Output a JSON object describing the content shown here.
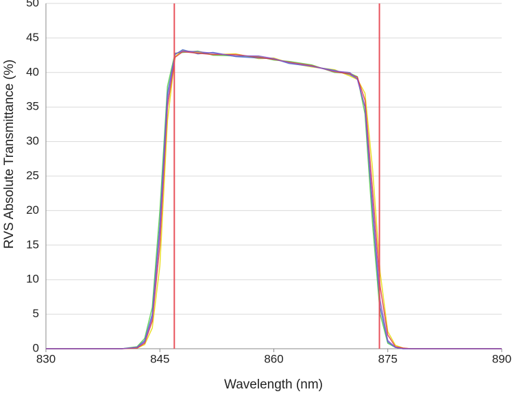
{
  "chart_data": {
    "type": "line",
    "x_label": "Wavelength (nm)",
    "y_label": "RVS Absolute Transmittance (%)",
    "x": [
      830,
      838,
      840,
      842,
      843,
      844,
      845,
      846,
      847,
      848,
      850,
      852,
      855,
      858,
      860,
      862,
      865,
      868,
      870,
      871,
      872,
      873,
      874,
      875,
      876,
      877,
      878,
      880,
      885,
      890
    ],
    "series": [
      {
        "color": "#e6d800",
        "values": [
          0,
          0,
          0,
          0.1,
          0.6,
          3,
          12,
          33,
          42.3,
          43.2,
          42.9,
          42.6,
          42.7,
          42.0,
          42.1,
          41.4,
          40.8,
          40.4,
          39.5,
          39.0,
          37,
          26,
          11,
          2.5,
          0.5,
          0.1,
          0,
          0,
          0,
          0
        ]
      },
      {
        "color": "#55cc44",
        "values": [
          0,
          0,
          0,
          0.3,
          1.5,
          6,
          20,
          38,
          42.8,
          42.9,
          43.1,
          42.5,
          42.4,
          42.3,
          41.8,
          41.6,
          41.1,
          40.0,
          39.9,
          39.4,
          34,
          18,
          5,
          0.8,
          0.2,
          0,
          0,
          0,
          0,
          0
        ]
      },
      {
        "color": "#4466cc",
        "values": [
          0,
          0,
          0,
          0.2,
          1.2,
          5,
          18,
          37,
          42.6,
          43.3,
          42.7,
          42.9,
          42.3,
          42.1,
          42.0,
          41.3,
          40.9,
          40.3,
          39.7,
          39.1,
          35,
          20,
          6,
          1,
          0.2,
          0,
          0,
          0,
          0,
          0
        ]
      },
      {
        "color": "#dd3344",
        "values": [
          0,
          0,
          0,
          0.1,
          0.8,
          4,
          15,
          35,
          42.2,
          43.0,
          42.8,
          42.6,
          42.6,
          42.2,
          41.9,
          41.5,
          41.0,
          40.1,
          39.8,
          39.3,
          36,
          23,
          9,
          2,
          0.3,
          0.1,
          0,
          0,
          0,
          0
        ]
      },
      {
        "color": "#8855cc",
        "values": [
          0,
          0,
          0,
          0.2,
          1,
          4.5,
          17,
          36,
          42.7,
          43.1,
          43.0,
          42.8,
          42.4,
          42.4,
          42.0,
          41.4,
          40.9,
          40.2,
          40.0,
          39.0,
          35,
          21,
          7,
          1.2,
          0.2,
          0,
          0,
          0,
          0,
          0
        ]
      }
    ],
    "xlim": [
      830,
      890
    ],
    "xticks": [
      830,
      845,
      860,
      875,
      890
    ],
    "ylim": [
      0,
      50
    ],
    "yticks": [
      0,
      5,
      10,
      15,
      20,
      25,
      30,
      35,
      40,
      45,
      50
    ],
    "grid": true,
    "vlines": [
      846.9,
      873.9
    ],
    "vline_color": "#e8505a"
  }
}
